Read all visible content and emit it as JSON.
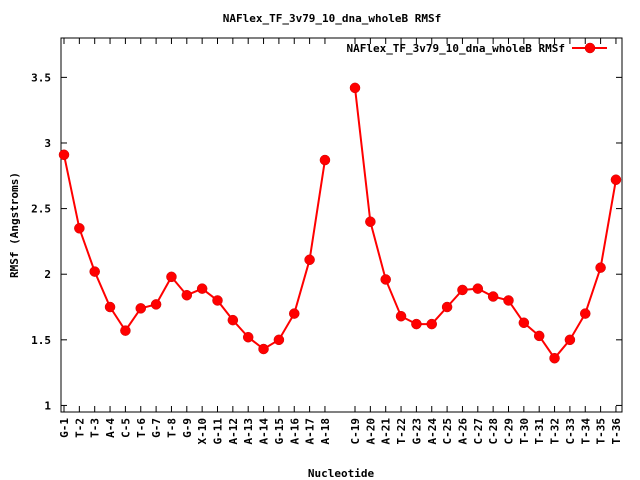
{
  "chart_data": {
    "type": "line",
    "title": "NAFlex_TF_3v79_10_dna_wholeB RMSf",
    "xlabel": "Nucleotide",
    "ylabel": "RMSf (Angstroms)",
    "ylim": [
      0.95,
      3.8
    ],
    "yticks": [
      "1",
      "1.5",
      "2",
      "2.5",
      "3",
      "3.5"
    ],
    "grid": false,
    "legend": "top-right",
    "color": "#ff0000",
    "series": [
      {
        "name": "NAFlex_TF_3v79_10_dna_wholeB RMSf",
        "segments": [
          {
            "categories": [
              "G-1",
              "T-2",
              "T-3",
              "A-4",
              "C-5",
              "T-6",
              "G-7",
              "T-8",
              "G-9",
              "X-10",
              "G-11",
              "A-12",
              "A-13",
              "A-14",
              "G-15",
              "A-16",
              "A-17",
              "A-18"
            ],
            "values": [
              2.91,
              2.35,
              2.02,
              1.75,
              1.57,
              1.74,
              1.77,
              1.98,
              1.84,
              1.89,
              1.8,
              1.65,
              1.52,
              1.43,
              1.5,
              1.7,
              2.11,
              2.87
            ]
          },
          {
            "categories": [
              "C-19",
              "A-20",
              "A-21",
              "T-22",
              "G-23",
              "A-24",
              "C-25",
              "A-26",
              "C-27",
              "C-28",
              "C-29",
              "T-30",
              "T-31",
              "T-32",
              "C-33",
              "T-34",
              "T-35",
              "T-36"
            ],
            "values": [
              3.42,
              2.4,
              1.96,
              1.68,
              1.62,
              1.62,
              1.75,
              1.88,
              1.89,
              1.83,
              1.8,
              1.63,
              1.53,
              1.36,
              1.5,
              1.7,
              2.05,
              2.72
            ]
          }
        ]
      }
    ]
  }
}
